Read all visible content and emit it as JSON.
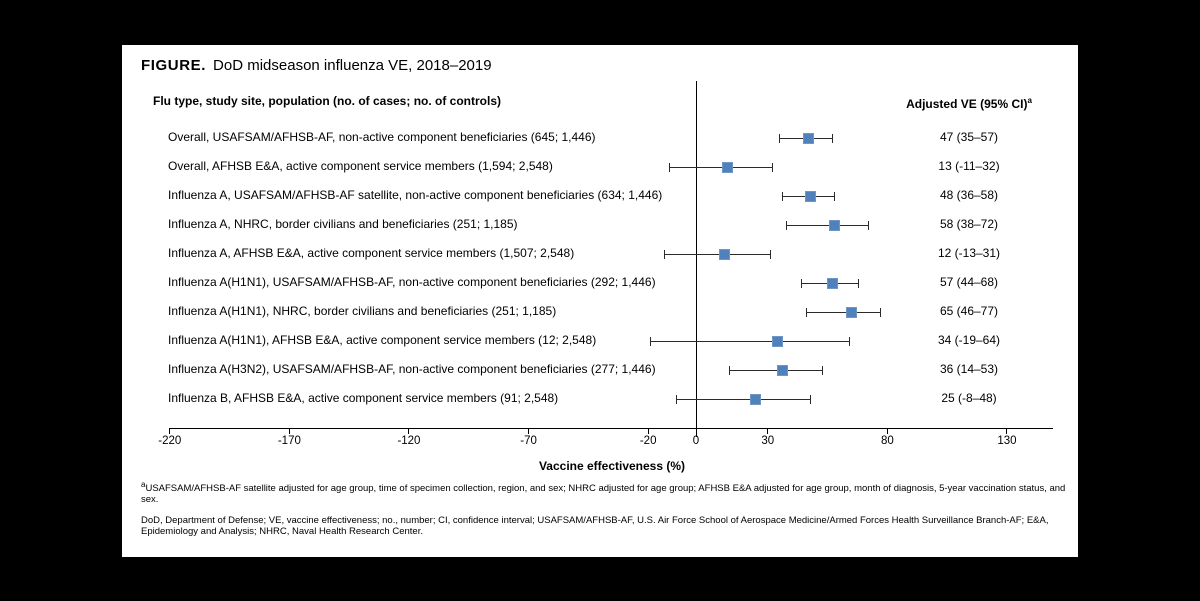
{
  "figure": {
    "title_label": "FIGURE.",
    "title_text": "DoD midseason influenza VE, 2018–2019"
  },
  "table": {
    "left_header": "Flu type, study site, population (no. of cases; no. of controls)",
    "right_header": "Adjusted VE (95% CI)",
    "right_header_sup": "a"
  },
  "chart_data": {
    "type": "forest",
    "title": "DoD midseason influenza VE, 2018–2019",
    "xlabel": "Vaccine effectiveness (%)",
    "axis_ticks": [
      -220,
      -170,
      -120,
      -70,
      -20,
      0,
      30,
      80,
      130
    ],
    "xlim": [
      -220,
      149
    ],
    "zero_line": 0,
    "marker_color": "#4f81bd",
    "rows": [
      {
        "label": "Overall, USAFSAM/AFHSB-AF, non-active component beneficiaries (645; 1,446)",
        "ve": 47,
        "ci_low": 35,
        "ci_high": 57,
        "ve_text": "47 (35–57)"
      },
      {
        "label": "Overall, AFHSB E&A, active component service members (1,594; 2,548)",
        "ve": 13,
        "ci_low": -11,
        "ci_high": 32,
        "ve_text": "13 (-11–32)"
      },
      {
        "label": "Influenza A, USAFSAM/AFHSB-AF satellite, non-active component beneficiaries (634; 1,446)",
        "ve": 48,
        "ci_low": 36,
        "ci_high": 58,
        "ve_text": "48 (36–58)"
      },
      {
        "label": "Influenza A, NHRC, border civilians and beneficiaries (251; 1,185)",
        "ve": 58,
        "ci_low": 38,
        "ci_high": 72,
        "ve_text": "58 (38–72)"
      },
      {
        "label": "Influenza A, AFHSB E&A, active component service members (1,507; 2,548)",
        "ve": 12,
        "ci_low": -13,
        "ci_high": 31,
        "ve_text": "12 (-13–31)"
      },
      {
        "label": "Influenza A(H1N1), USAFSAM/AFHSB-AF, non-active component beneficiaries (292; 1,446)",
        "ve": 57,
        "ci_low": 44,
        "ci_high": 68,
        "ve_text": "57 (44–68)"
      },
      {
        "label": "Influenza A(H1N1), NHRC, border civilians and beneficiaries (251; 1,185)",
        "ve": 65,
        "ci_low": 46,
        "ci_high": 77,
        "ve_text": "65 (46–77)"
      },
      {
        "label": "Influenza A(H1N1), AFHSB E&A, active component service members (12; 2,548)",
        "ve": 34,
        "ci_low": -19,
        "ci_high": 64,
        "ve_text": "34 (-19–64)"
      },
      {
        "label": "Influenza A(H3N2), USAFSAM/AFHSB-AF, non-active component beneficiaries (277; 1,446)",
        "ve": 36,
        "ci_low": 14,
        "ci_high": 53,
        "ve_text": "36 (14–53)"
      },
      {
        "label": "Influenza B, AFHSB E&A, active component service members (91; 2,548)",
        "ve": 25,
        "ci_low": -8,
        "ci_high": 48,
        "ve_text": "25 (-8–48)"
      }
    ]
  },
  "footnotes": {
    "a_sup": "a",
    "a_text": "USAFSAM/AFHSB-AF satellite adjusted for age group, time of specimen collection, region, and sex; NHRC adjusted for age group; AFHSB E&A adjusted for age group, month of diagnosis, 5-year vaccination status, and sex.",
    "abbrev_text": "DoD, Department of Defense; VE, vaccine effectiveness; no., number; CI, confidence interval; USAFSAM/AFHSB-AF, U.S. Air Force School of Aerospace Medicine/Armed Forces Health Surveillance Branch-AF; E&A, Epidemiology and Analysis; NHRC, Naval Health Research Center."
  }
}
